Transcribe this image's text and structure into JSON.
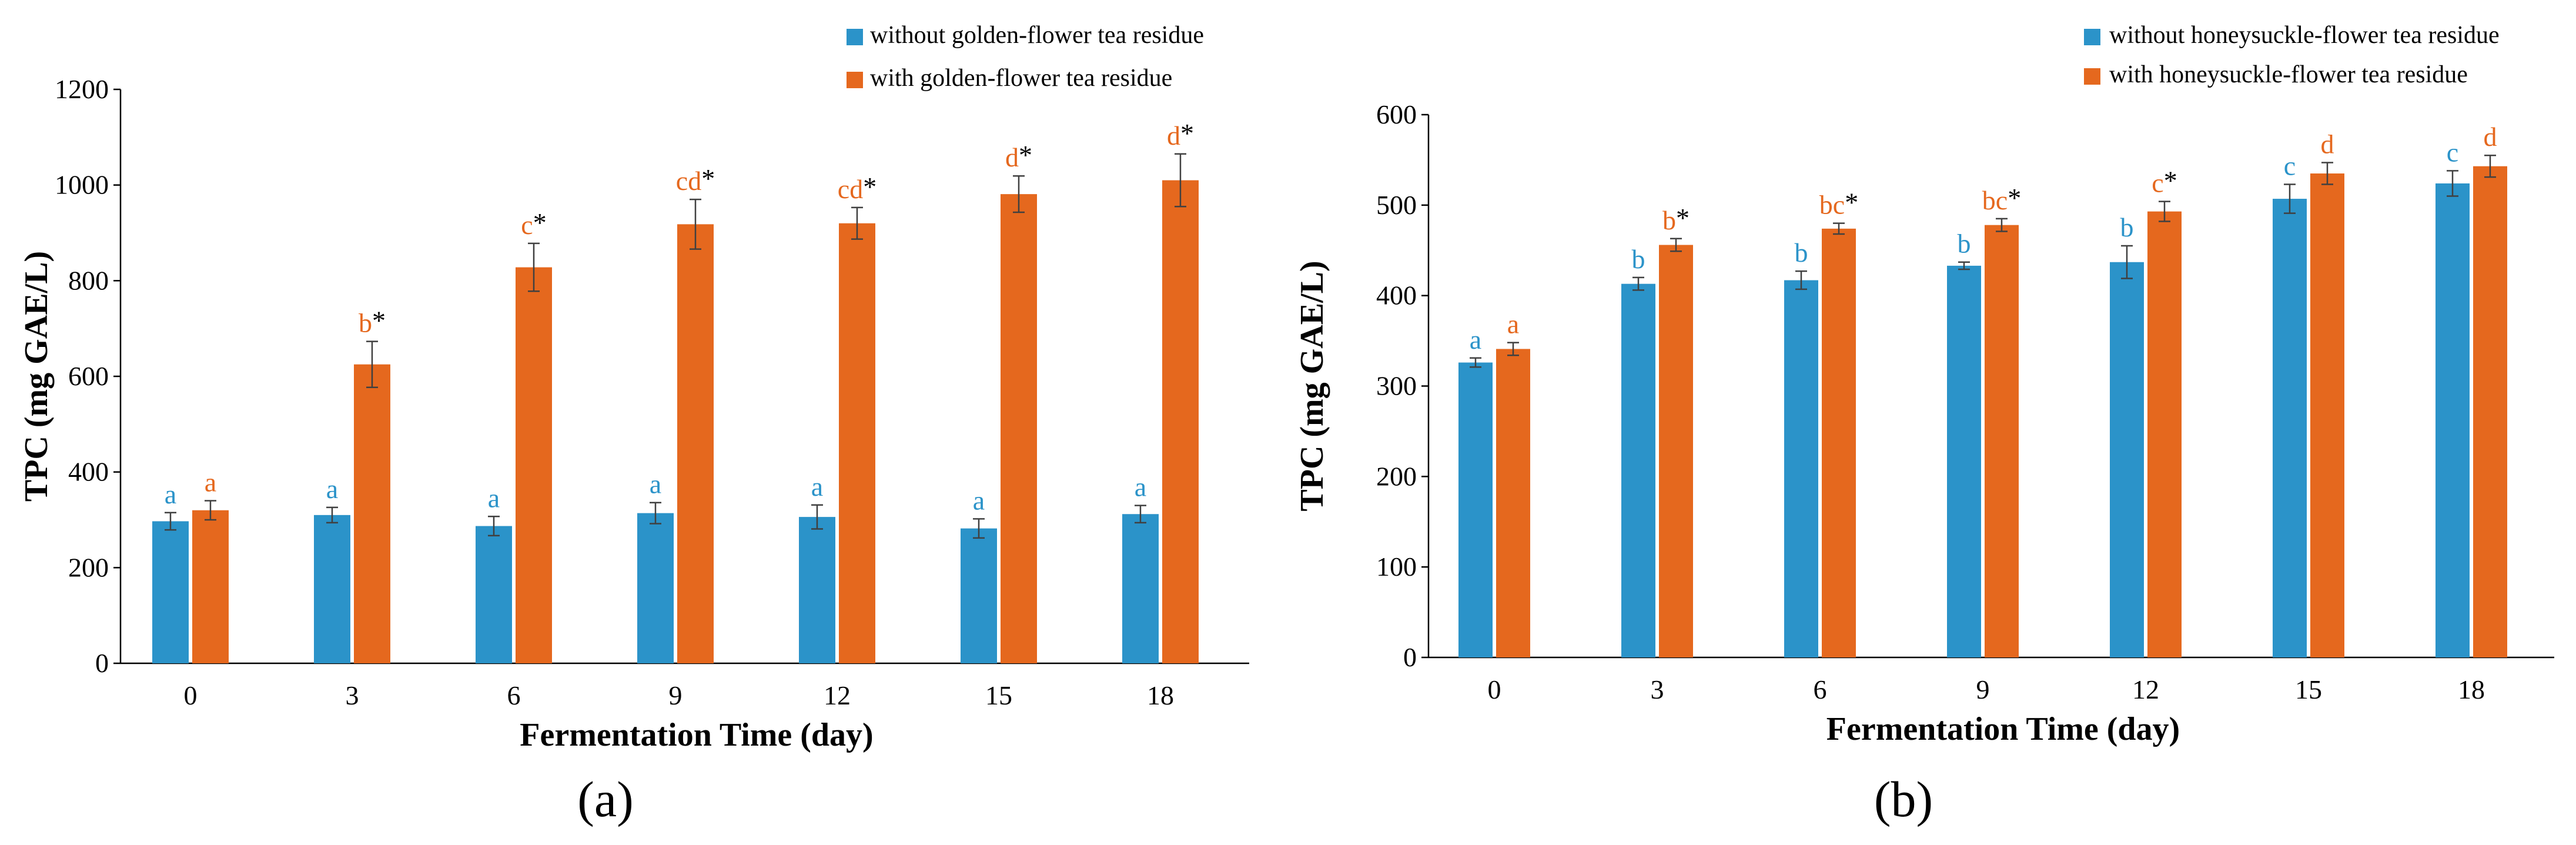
{
  "colors": {
    "without": "#2B93C9",
    "with": "#E5681E",
    "axis": "#000000",
    "error": "#404040"
  },
  "chart_data": [
    {
      "type": "bar",
      "panel_label": "(a)",
      "xlabel": "Fermentation Time (day)",
      "ylabel": "TPC (mg GAE/L)",
      "ylim": [
        0,
        1200
      ],
      "yticks": [
        "0",
        "200",
        "400",
        "600",
        "800",
        "1000",
        "1200"
      ],
      "categories": [
        "0",
        "3",
        "6",
        "9",
        "12",
        "15",
        "18"
      ],
      "legend_position": "top-right",
      "series": [
        {
          "name": "without golden-flower tea residue",
          "values": [
            297,
            310,
            287,
            314,
            306,
            282,
            312
          ],
          "errors": [
            18,
            16,
            20,
            22,
            25,
            20,
            18
          ],
          "labels": [
            "a",
            "a",
            "a",
            "a",
            "a",
            "a",
            "a"
          ],
          "stars": [
            "",
            "",
            "",
            "",
            "",
            "",
            ""
          ]
        },
        {
          "name": "with golden-flower tea residue",
          "values": [
            320,
            625,
            828,
            918,
            920,
            981,
            1010
          ],
          "errors": [
            20,
            48,
            50,
            52,
            33,
            38,
            55
          ],
          "labels": [
            "a",
            "b",
            "c",
            "cd",
            "cd",
            "d",
            "d"
          ],
          "stars": [
            "",
            "*",
            "*",
            "*",
            "*",
            "*",
            "*"
          ]
        }
      ]
    },
    {
      "type": "bar",
      "panel_label": "(b)",
      "xlabel": "Fermentation Time (day)",
      "ylabel": "TPC (mg GAE/L)",
      "ylim": [
        0,
        600
      ],
      "yticks": [
        "0",
        "100",
        "200",
        "300",
        "400",
        "500",
        "600"
      ],
      "categories": [
        "0",
        "3",
        "6",
        "9",
        "12",
        "15",
        "18"
      ],
      "legend_position": "top-right",
      "series": [
        {
          "name": "without honeysuckle-flower tea residue",
          "values": [
            326,
            413,
            417,
            433,
            437,
            507,
            524
          ],
          "errors": [
            5,
            7,
            10,
            4,
            18,
            16,
            14
          ],
          "labels": [
            "a",
            "b",
            "b",
            "b",
            "b",
            "c",
            "c"
          ],
          "stars": [
            "",
            "",
            "",
            "",
            "",
            "",
            ""
          ]
        },
        {
          "name": "with honeysuckle-flower tea residue",
          "values": [
            341,
            456,
            474,
            478,
            493,
            535,
            543
          ],
          "errors": [
            7,
            7,
            6,
            7,
            11,
            12,
            12
          ],
          "labels": [
            "a",
            "b",
            "bc",
            "bc",
            "c",
            "d",
            "d"
          ],
          "stars": [
            "",
            "*",
            "*",
            "*",
            "*",
            "",
            ""
          ]
        }
      ]
    }
  ]
}
